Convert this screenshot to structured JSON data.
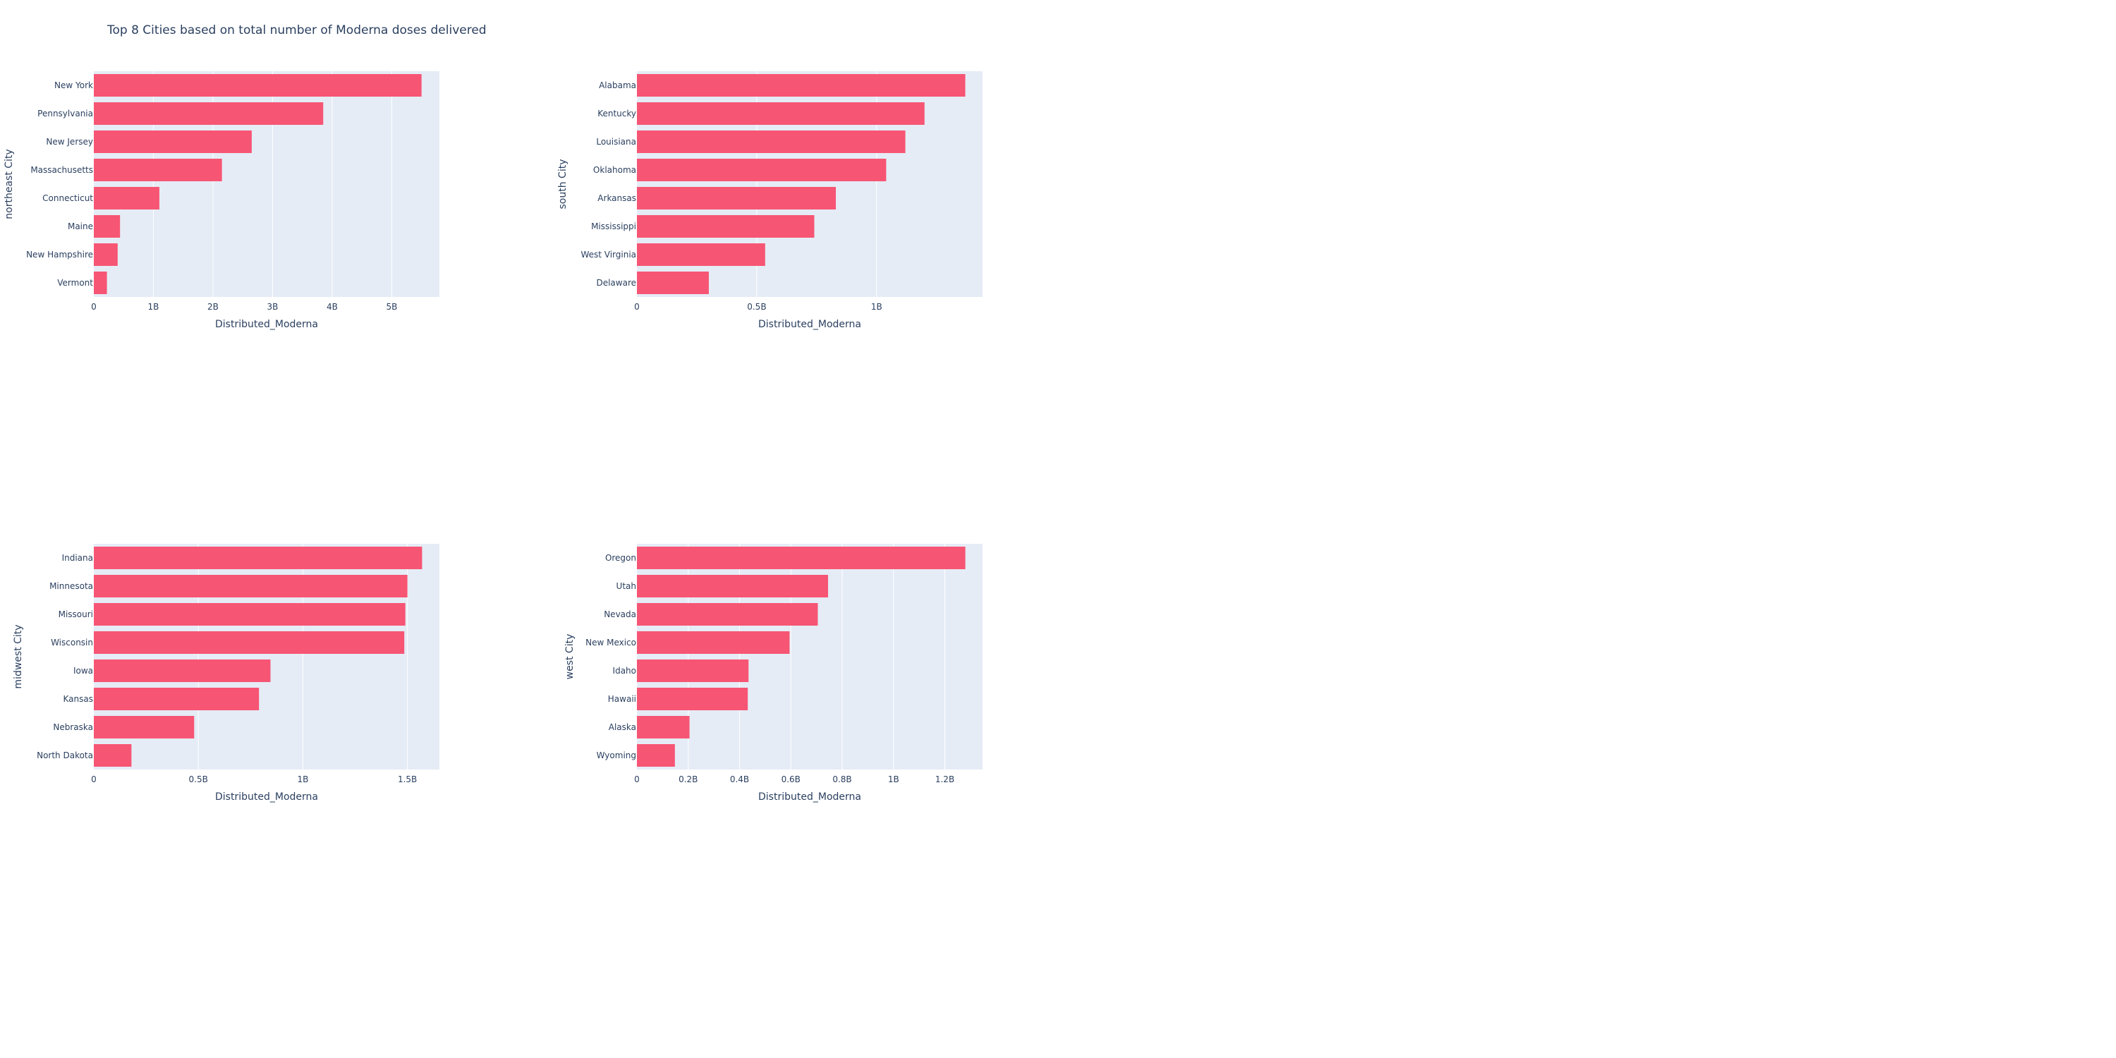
{
  "title": "Top 8 Cities based on total number of Moderna doses delivered",
  "colors": {
    "bar": "#F7506F",
    "plot_bg": "#E5ECF6",
    "grid": "#FFFFFF",
    "text": "#2A3F5F"
  },
  "chart_data": [
    {
      "type": "bar",
      "orientation": "horizontal",
      "categories": [
        "New York",
        "Pennsylvania",
        "New Jersey",
        "Massachusetts",
        "Connecticut",
        "Maine",
        "New Hampshire",
        "Vermont"
      ],
      "values": [
        5500000000,
        3850000000,
        2650000000,
        2150000000,
        1100000000,
        440000000,
        400000000,
        220000000
      ],
      "xlabel": "Distributed_Moderna",
      "ylabel": "northeast City",
      "xlim": [
        0,
        5800000000
      ],
      "xticks": [
        0,
        1000000000,
        2000000000,
        3000000000,
        4000000000,
        5000000000
      ],
      "xtick_labels": [
        "0",
        "1B",
        "2B",
        "3B",
        "4B",
        "5B"
      ],
      "grid": true
    },
    {
      "type": "bar",
      "orientation": "horizontal",
      "categories": [
        "Alabama",
        "Kentucky",
        "Louisiana",
        "Oklahoma",
        "Arkansas",
        "Mississippi",
        "West Virginia",
        "Delaware"
      ],
      "values": [
        1370000000,
        1200000000,
        1120000000,
        1040000000,
        830000000,
        740000000,
        535000000,
        300000000
      ],
      "xlabel": "Distributed_Moderna",
      "ylabel": "south City",
      "xlim": [
        0,
        1442000000
      ],
      "xticks": [
        0,
        500000000,
        1000000000
      ],
      "xtick_labels": [
        "0",
        "0.5B",
        "1B"
      ],
      "grid": true
    },
    {
      "type": "bar",
      "orientation": "horizontal",
      "categories": [
        "Indiana",
        "Minnesota",
        "Missouri",
        "Wisconsin",
        "Iowa",
        "Kansas",
        "Nebraska",
        "North Dakota"
      ],
      "values": [
        1570000000,
        1500000000,
        1490000000,
        1485000000,
        845000000,
        790000000,
        480000000,
        180000000
      ],
      "xlabel": "Distributed_Moderna",
      "ylabel": "midwest City",
      "xlim": [
        0,
        1653000000
      ],
      "xticks": [
        0,
        500000000,
        1000000000,
        1500000000
      ],
      "xtick_labels": [
        "0",
        "0.5B",
        "1B",
        "1.5B"
      ],
      "grid": true
    },
    {
      "type": "bar",
      "orientation": "horizontal",
      "categories": [
        "Oregon",
        "Utah",
        "Nevada",
        "New Mexico",
        "Idaho",
        "Hawaii",
        "Alaska",
        "Wyoming"
      ],
      "values": [
        1280000000,
        745000000,
        705000000,
        595000000,
        435000000,
        432000000,
        205000000,
        148000000
      ],
      "xlabel": "Distributed_Moderna",
      "ylabel": "west City",
      "xlim": [
        0,
        1347000000
      ],
      "xticks": [
        0,
        200000000,
        400000000,
        600000000,
        800000000,
        1000000000,
        1200000000
      ],
      "xtick_labels": [
        "0",
        "0.2B",
        "0.4B",
        "0.6B",
        "0.8B",
        "1B",
        "1.2B"
      ],
      "grid": true
    }
  ]
}
